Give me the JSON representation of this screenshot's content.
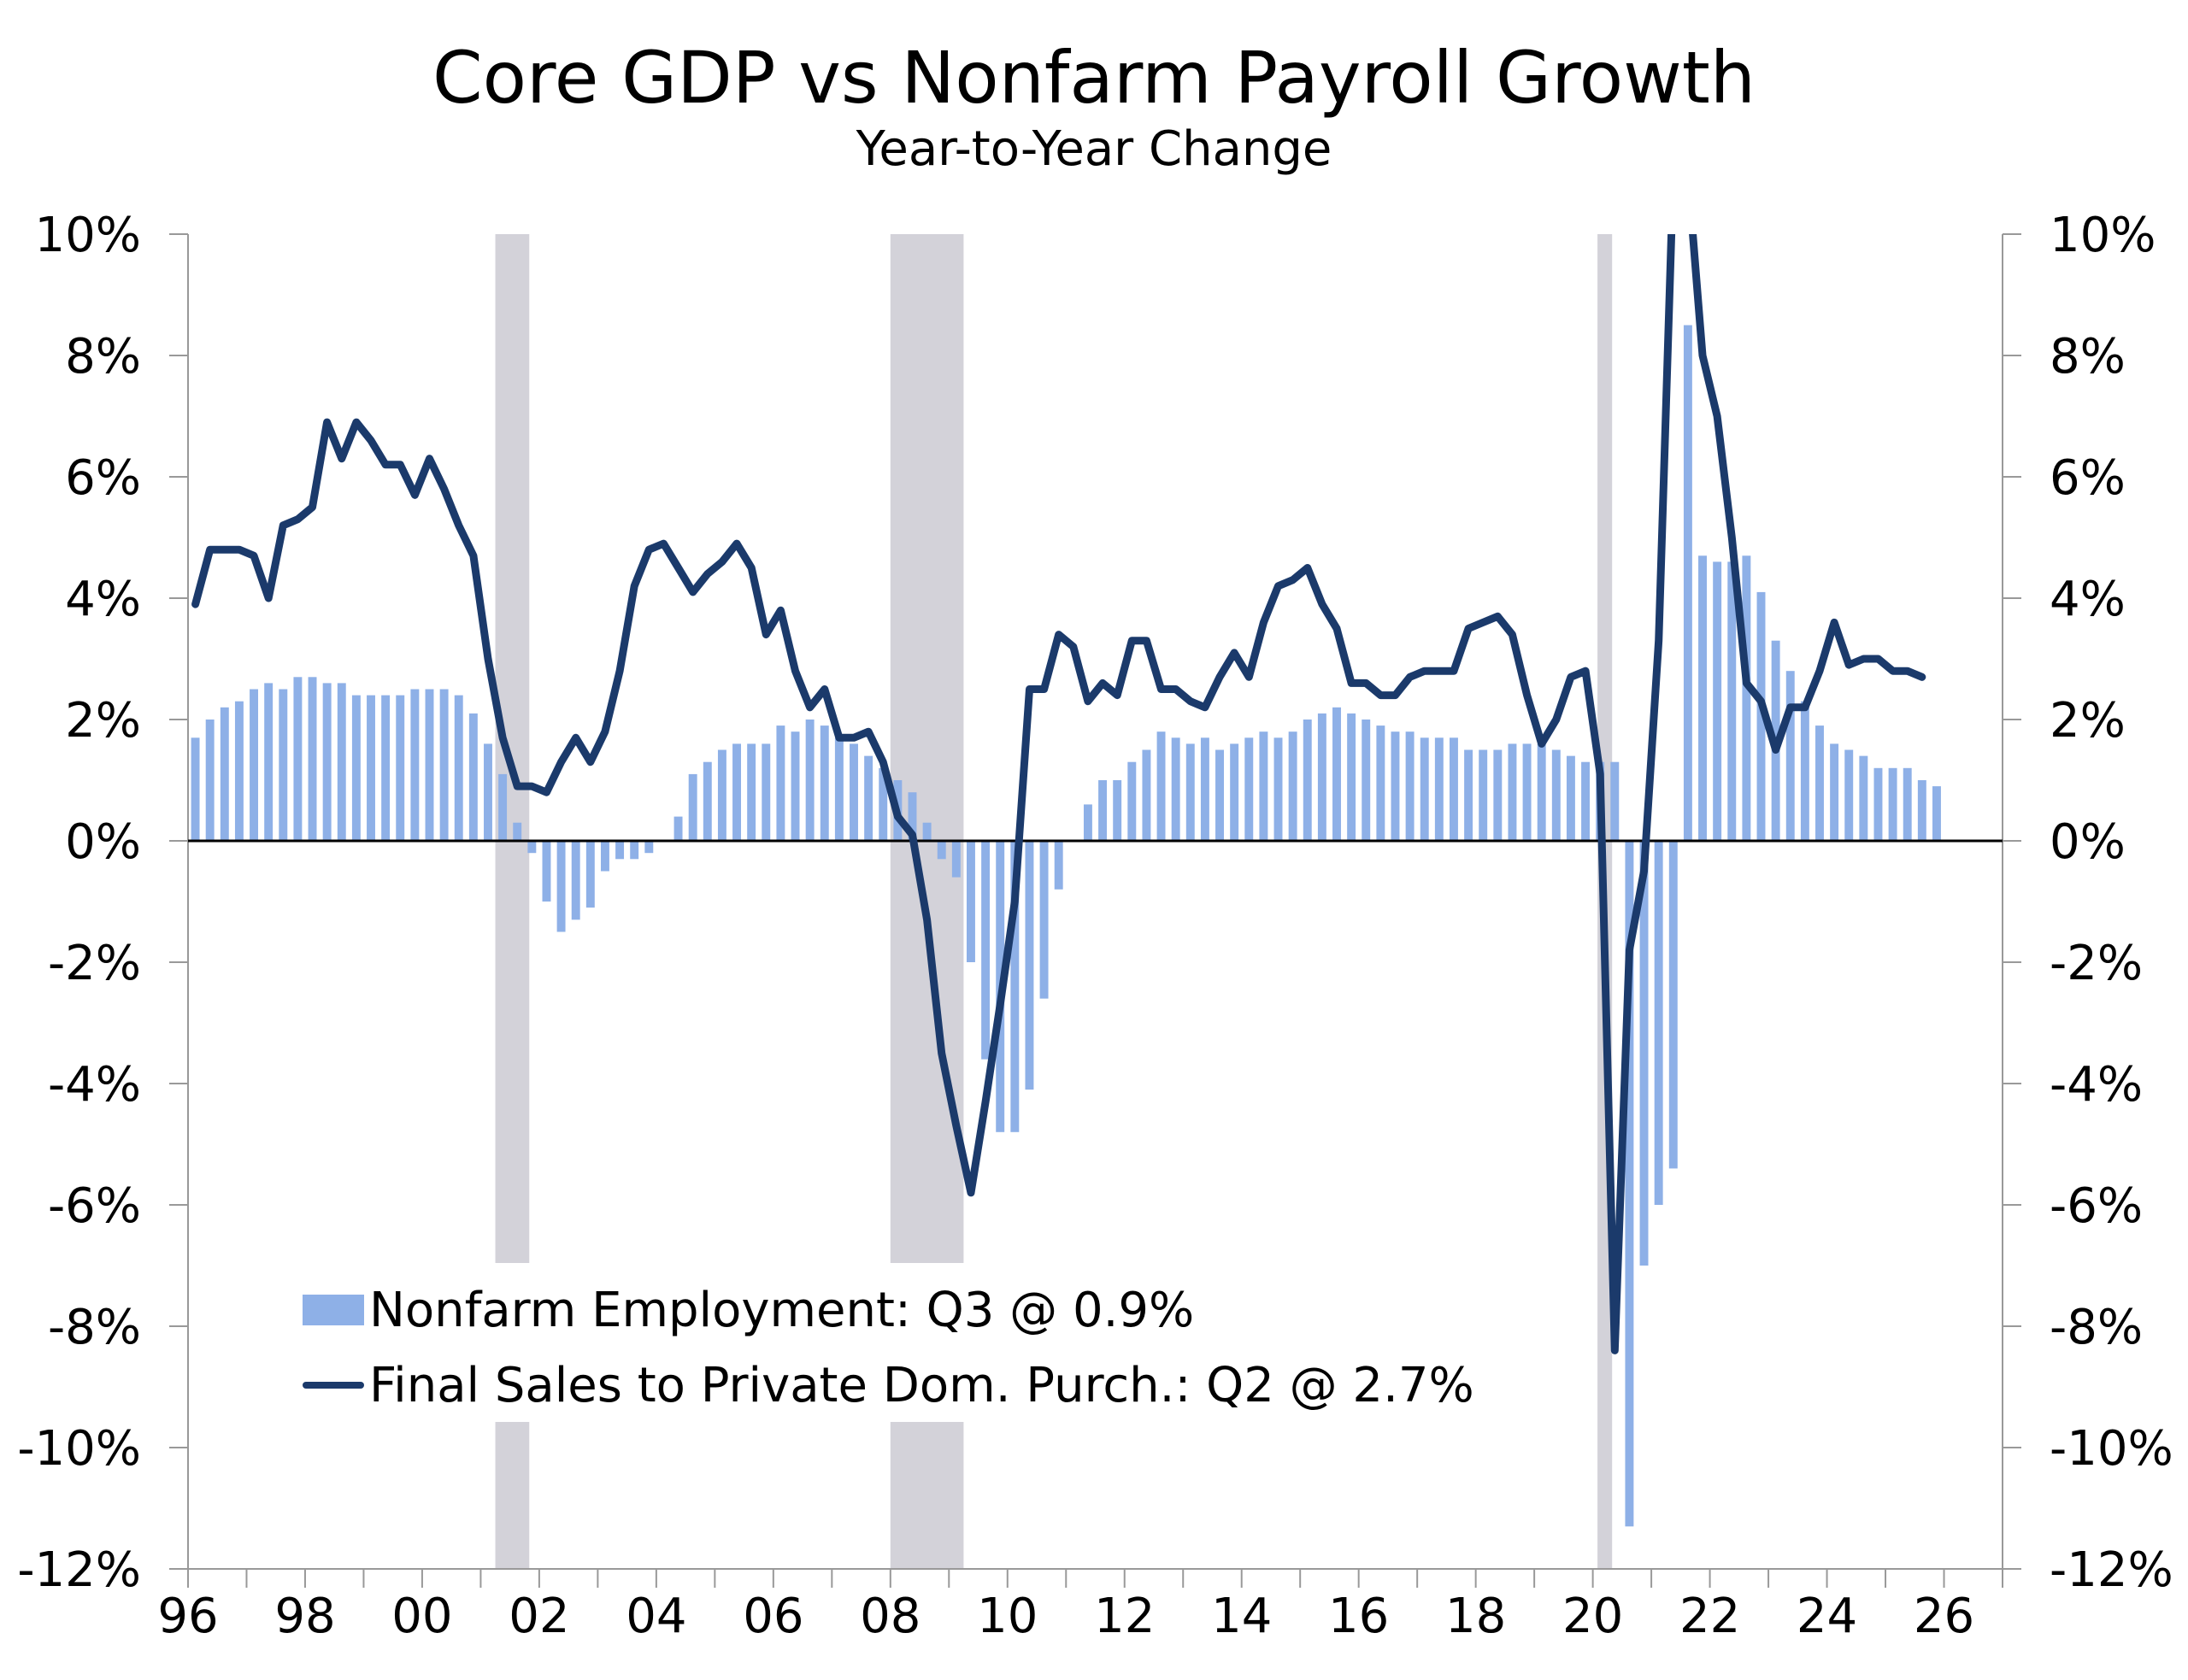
{
  "chart_data": {
    "type": "bar+line",
    "title": "Core GDP vs Nonfarm Payroll Growth",
    "subtitle": "Year-to-Year Change",
    "ylim": [
      -12,
      10
    ],
    "y_ticks": [
      10,
      8,
      6,
      4,
      2,
      0,
      -2,
      -4,
      -6,
      -8,
      -10,
      -12
    ],
    "y_tick_labels": [
      "10%",
      "8%",
      "6%",
      "4%",
      "2%",
      "0%",
      "-2%",
      "-4%",
      "-6%",
      "-8%",
      "-10%",
      "-12%"
    ],
    "x_start": 1996.0,
    "x_end": 2027.0,
    "x_ticks": [
      1996,
      1998,
      2000,
      2002,
      2004,
      2006,
      2008,
      2010,
      2012,
      2014,
      2016,
      2018,
      2020,
      2022,
      2024,
      2026
    ],
    "x_tick_labels": [
      "96",
      "98",
      "00",
      "02",
      "04",
      "06",
      "08",
      "10",
      "12",
      "14",
      "16",
      "18",
      "20",
      "22",
      "24",
      "26"
    ],
    "recessions": [
      [
        2001.25,
        2001.83
      ],
      [
        2008.0,
        2009.25
      ],
      [
        2020.08,
        2020.33
      ]
    ],
    "colors": {
      "bars": "#8EB0E7",
      "line": "#1B3A6B",
      "recession": "#D3D2D9"
    },
    "series": [
      {
        "name": "Nonfarm Employment: Q3 @ 0.9%",
        "kind": "bar",
        "start": 1996.0,
        "step": 0.25,
        "values": [
          1.7,
          2.0,
          2.2,
          2.3,
          2.5,
          2.6,
          2.5,
          2.7,
          2.7,
          2.6,
          2.6,
          2.4,
          2.4,
          2.4,
          2.4,
          2.5,
          2.5,
          2.5,
          2.4,
          2.1,
          1.6,
          1.1,
          0.3,
          -0.2,
          -1.0,
          -1.5,
          -1.3,
          -1.1,
          -0.5,
          -0.3,
          -0.3,
          -0.2,
          0.0,
          0.4,
          1.1,
          1.3,
          1.5,
          1.6,
          1.6,
          1.6,
          1.9,
          1.8,
          2.0,
          1.9,
          1.7,
          1.6,
          1.4,
          1.2,
          1.0,
          0.8,
          0.3,
          -0.3,
          -0.6,
          -2.0,
          -3.6,
          -4.8,
          -4.8,
          -4.1,
          -2.6,
          -0.8,
          0.0,
          0.6,
          1.0,
          1.0,
          1.3,
          1.5,
          1.8,
          1.7,
          1.6,
          1.7,
          1.5,
          1.6,
          1.7,
          1.8,
          1.7,
          1.8,
          2.0,
          2.1,
          2.2,
          2.1,
          2.0,
          1.9,
          1.8,
          1.8,
          1.7,
          1.7,
          1.7,
          1.5,
          1.5,
          1.5,
          1.6,
          1.6,
          1.6,
          1.5,
          1.4,
          1.3,
          1.3,
          1.3,
          -11.3,
          -7.0,
          -6.0,
          -5.4,
          8.5,
          4.7,
          4.6,
          4.6,
          4.7,
          4.1,
          3.3,
          2.8,
          2.3,
          1.9,
          1.6,
          1.5,
          1.4,
          1.2,
          1.2,
          1.2,
          1.0,
          0.9
        ]
      },
      {
        "name": "Final Sales to Private Dom. Purch.: Q2 @ 2.7%",
        "kind": "line",
        "start": 1996.0,
        "step": 0.25,
        "values": [
          3.9,
          4.8,
          4.8,
          4.8,
          4.7,
          4.0,
          5.2,
          5.3,
          5.5,
          6.9,
          6.3,
          6.9,
          6.6,
          6.2,
          6.2,
          5.7,
          6.3,
          5.8,
          5.2,
          4.7,
          3.0,
          1.7,
          0.9,
          0.9,
          0.8,
          1.3,
          1.7,
          1.3,
          1.8,
          2.8,
          4.2,
          4.8,
          4.9,
          4.5,
          4.1,
          4.4,
          4.6,
          4.9,
          4.5,
          3.4,
          3.8,
          2.8,
          2.2,
          2.5,
          1.7,
          1.7,
          1.8,
          1.3,
          0.4,
          0.1,
          -1.3,
          -3.5,
          -4.7,
          -5.8,
          -4.3,
          -2.7,
          -1.0,
          2.5,
          2.5,
          3.4,
          3.2,
          2.3,
          2.6,
          2.4,
          3.3,
          3.3,
          2.5,
          2.5,
          2.3,
          2.2,
          2.7,
          3.1,
          2.7,
          3.6,
          4.2,
          4.3,
          4.5,
          3.9,
          3.5,
          2.6,
          2.6,
          2.4,
          2.4,
          2.7,
          2.8,
          2.8,
          2.8,
          3.5,
          3.6,
          3.7,
          3.4,
          2.4,
          1.6,
          2.0,
          2.7,
          2.8,
          1.1,
          -8.4,
          -1.8,
          -0.5,
          3.3,
          11.0,
          11.0,
          8.0,
          7.0,
          5.0,
          2.6,
          2.3,
          1.5,
          2.2,
          2.2,
          2.8,
          3.6,
          2.9,
          3.0,
          3.0,
          2.8,
          2.8,
          2.7
        ]
      }
    ],
    "legend": {
      "placement": "bottom-left"
    }
  }
}
